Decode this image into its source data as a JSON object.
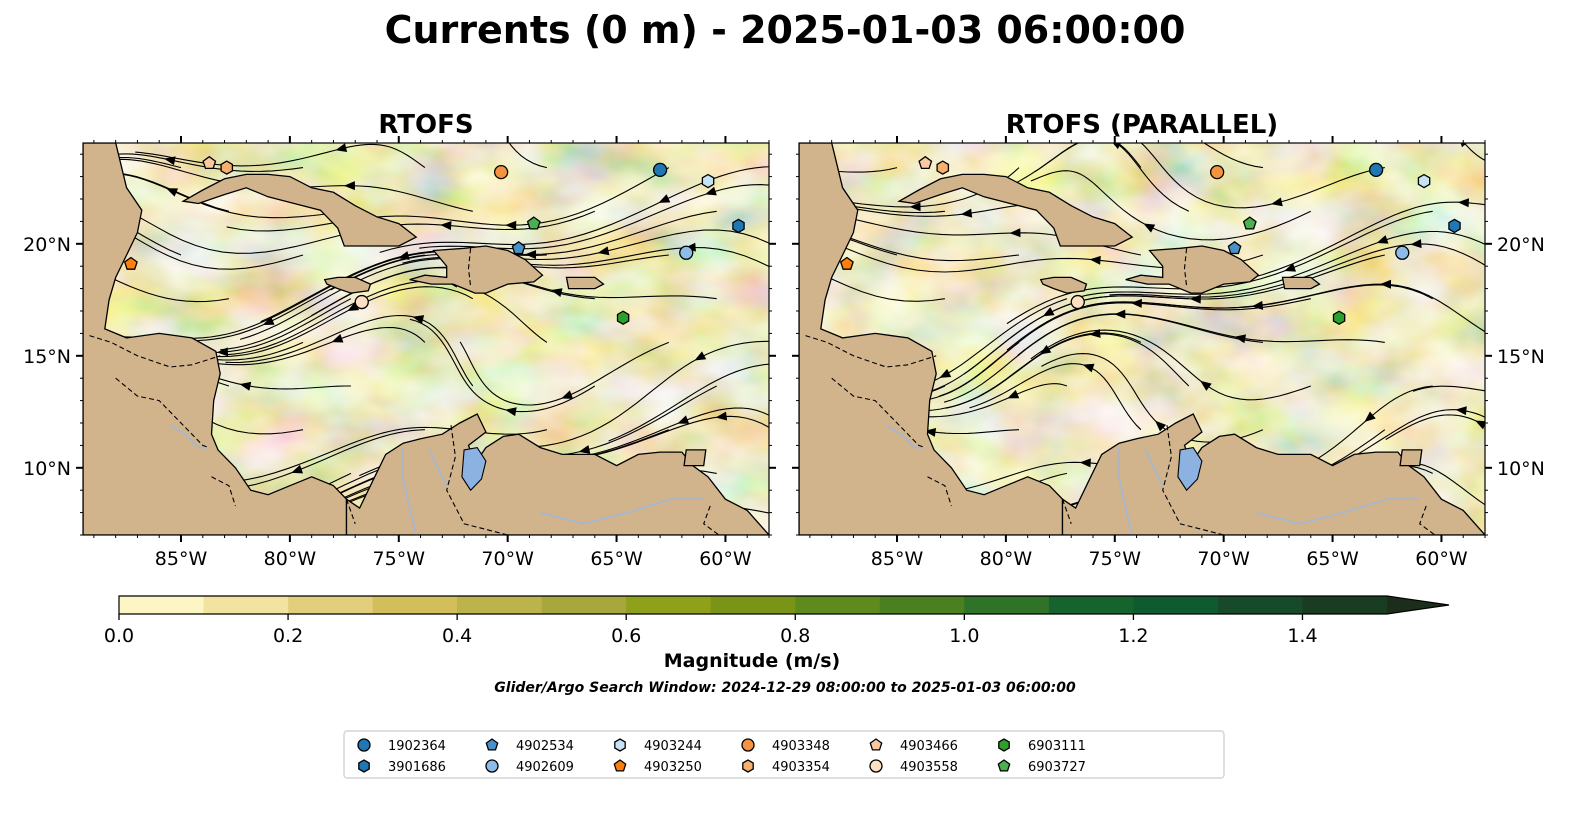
{
  "figure": {
    "title": "Currents (0 m) - 2025-01-03 06:00:00",
    "subtitle": "Glider/Argo Search Window: 2024-12-29 08:00:00 to 2025-01-03 06:00:00"
  },
  "panels": [
    {
      "id": "left",
      "title": "RTOFS"
    },
    {
      "id": "right",
      "title": "RTOFS (PARALLEL)"
    }
  ],
  "axes": {
    "lon_ticks": [
      "85°W",
      "80°W",
      "75°W",
      "70°W",
      "65°W",
      "60°W"
    ],
    "lat_ticks": [
      "20°N",
      "15°N",
      "10°N"
    ],
    "lon_range": [
      -89.5,
      -58.0
    ],
    "lat_range": [
      7.0,
      24.5
    ]
  },
  "colorbar": {
    "label": "Magnitude (m/s)",
    "ticks": [
      "0.0",
      "0.2",
      "0.4",
      "0.6",
      "0.8",
      "1.0",
      "1.2",
      "1.4"
    ],
    "range": [
      0.0,
      1.5
    ],
    "extend": "max",
    "colors": [
      "#fdf6c4",
      "#f2e3a0",
      "#e2ce7c",
      "#d2bf5c",
      "#bcb34a",
      "#a7a73c",
      "#8fa01a",
      "#7a9418",
      "#5f8a1c",
      "#4a8020",
      "#2f7328",
      "#16632e",
      "#105a30",
      "#164a2a",
      "#1a3c22",
      "#1c2e1b"
    ]
  },
  "colors": {
    "land": "#d2b48c",
    "lake": "#8bb2e0",
    "river": "#a0b8d8",
    "coast": "#000000",
    "streamline": "#000000"
  },
  "legend": {
    "items": [
      {
        "label": "1902364",
        "marker": "circle",
        "color": "#1f77b4"
      },
      {
        "label": "3901686",
        "marker": "hexagon",
        "color": "#1f77b4"
      },
      {
        "label": "4902534",
        "marker": "pentagon",
        "color": "#4a90c8"
      },
      {
        "label": "4902609",
        "marker": "circle",
        "color": "#8cbce8"
      },
      {
        "label": "4903244",
        "marker": "hexagon",
        "color": "#c6e2f5"
      },
      {
        "label": "4903250",
        "marker": "pentagon",
        "color": "#ff7f0e"
      },
      {
        "label": "4903348",
        "marker": "circle",
        "color": "#f59440"
      },
      {
        "label": "4903354",
        "marker": "hexagon",
        "color": "#f8ae6c"
      },
      {
        "label": "4903466",
        "marker": "pentagon",
        "color": "#fbc8a0"
      },
      {
        "label": "4903558",
        "marker": "circle",
        "color": "#fde0c4"
      },
      {
        "label": "6903111",
        "marker": "hexagon",
        "color": "#2ca02c"
      },
      {
        "label": "6903727",
        "marker": "pentagon",
        "color": "#4caf50"
      }
    ]
  },
  "map_data": {
    "floats": [
      {
        "id": "1902364",
        "lon": -63.0,
        "lat": 23.3
      },
      {
        "id": "3901686",
        "lon": -59.4,
        "lat": 20.8
      },
      {
        "id": "4902534",
        "lon": -69.5,
        "lat": 19.8
      },
      {
        "id": "4902609",
        "lon": -61.8,
        "lat": 19.6
      },
      {
        "id": "4903244",
        "lon": -60.8,
        "lat": 22.8
      },
      {
        "id": "4903250",
        "lon": -87.3,
        "lat": 19.1
      },
      {
        "id": "4903348",
        "lon": -70.3,
        "lat": 23.2
      },
      {
        "id": "4903354",
        "lon": -82.9,
        "lat": 23.4
      },
      {
        "id": "4903466",
        "lon": -83.7,
        "lat": 23.6
      },
      {
        "id": "4903558",
        "lon": -76.7,
        "lat": 17.4
      },
      {
        "id": "6903111",
        "lon": -64.7,
        "lat": 16.7
      },
      {
        "id": "6903727",
        "lon": -68.8,
        "lat": 20.9
      }
    ],
    "land": {
      "cuba": [
        [
          -84.9,
          21.9
        ],
        [
          -84.0,
          22.4
        ],
        [
          -83.0,
          22.9
        ],
        [
          -82.0,
          23.1
        ],
        [
          -81.0,
          23.1
        ],
        [
          -80.0,
          23.0
        ],
        [
          -79.0,
          22.5
        ],
        [
          -78.0,
          22.3
        ],
        [
          -77.0,
          21.7
        ],
        [
          -76.0,
          21.2
        ],
        [
          -75.0,
          20.9
        ],
        [
          -74.2,
          20.3
        ],
        [
          -75.0,
          19.9
        ],
        [
          -76.0,
          19.9
        ],
        [
          -77.5,
          19.9
        ],
        [
          -77.8,
          20.7
        ],
        [
          -78.6,
          21.5
        ],
        [
          -79.8,
          21.8
        ],
        [
          -81.0,
          22.1
        ],
        [
          -82.0,
          22.5
        ],
        [
          -83.0,
          22.2
        ],
        [
          -84.2,
          21.8
        ]
      ],
      "hispaniola": [
        [
          -74.5,
          18.4
        ],
        [
          -73.8,
          18.6
        ],
        [
          -72.8,
          18.5
        ],
        [
          -72.8,
          19.0
        ],
        [
          -73.4,
          19.7
        ],
        [
          -72.0,
          19.8
        ],
        [
          -71.0,
          19.9
        ],
        [
          -70.0,
          19.7
        ],
        [
          -69.2,
          19.3
        ],
        [
          -68.4,
          18.6
        ],
        [
          -68.8,
          18.3
        ],
        [
          -70.0,
          18.2
        ],
        [
          -71.0,
          17.8
        ],
        [
          -71.5,
          17.8
        ],
        [
          -72.5,
          18.2
        ],
        [
          -73.5,
          18.2
        ]
      ],
      "jamaica": [
        [
          -78.4,
          18.4
        ],
        [
          -77.8,
          18.5
        ],
        [
          -77.0,
          18.5
        ],
        [
          -76.3,
          18.2
        ],
        [
          -76.4,
          17.9
        ],
        [
          -77.2,
          17.8
        ],
        [
          -77.8,
          18.0
        ],
        [
          -78.3,
          18.2
        ]
      ],
      "puerto_rico": [
        [
          -67.3,
          18.5
        ],
        [
          -66.0,
          18.5
        ],
        [
          -65.6,
          18.2
        ],
        [
          -66.0,
          18.0
        ],
        [
          -67.2,
          18.0
        ]
      ],
      "central_america": [
        [
          -89.5,
          24.5
        ],
        [
          -88.0,
          24.5
        ],
        [
          -87.5,
          22.5
        ],
        [
          -86.8,
          21.5
        ],
        [
          -87.0,
          20.5
        ],
        [
          -87.5,
          19.5
        ],
        [
          -88.0,
          18.5
        ],
        [
          -88.3,
          17.5
        ],
        [
          -88.5,
          16.2
        ],
        [
          -87.5,
          15.8
        ],
        [
          -86.0,
          16.0
        ],
        [
          -84.5,
          15.8
        ],
        [
          -83.4,
          15.2
        ],
        [
          -83.2,
          14.2
        ],
        [
          -83.5,
          13.0
        ],
        [
          -83.6,
          11.5
        ],
        [
          -83.3,
          10.8
        ],
        [
          -82.5,
          10.0
        ],
        [
          -81.8,
          9.0
        ],
        [
          -81.0,
          8.8
        ],
        [
          -80.0,
          9.2
        ],
        [
          -79.0,
          9.6
        ],
        [
          -78.0,
          9.2
        ],
        [
          -77.4,
          8.6
        ],
        [
          -77.4,
          7.0
        ],
        [
          -89.5,
          7.0
        ]
      ],
      "south_america": [
        [
          -77.4,
          8.6
        ],
        [
          -76.8,
          8.2
        ],
        [
          -76.2,
          9.4
        ],
        [
          -75.6,
          10.6
        ],
        [
          -74.8,
          11.1
        ],
        [
          -74.0,
          11.3
        ],
        [
          -73.0,
          11.5
        ],
        [
          -72.2,
          12.0
        ],
        [
          -71.4,
          12.4
        ],
        [
          -71.0,
          11.6
        ],
        [
          -71.8,
          11.0
        ],
        [
          -71.5,
          10.2
        ],
        [
          -71.0,
          10.9
        ],
        [
          -70.2,
          11.4
        ],
        [
          -69.5,
          11.5
        ],
        [
          -68.5,
          10.9
        ],
        [
          -67.5,
          10.6
        ],
        [
          -66.0,
          10.6
        ],
        [
          -65.0,
          10.1
        ],
        [
          -64.0,
          10.6
        ],
        [
          -63.0,
          10.7
        ],
        [
          -62.0,
          10.7
        ],
        [
          -61.5,
          10.1
        ],
        [
          -60.8,
          9.6
        ],
        [
          -60.0,
          8.6
        ],
        [
          -59.0,
          8.1
        ],
        [
          -58.0,
          7.0
        ],
        [
          -77.4,
          7.0
        ]
      ],
      "trinidad": [
        [
          -61.9,
          10.1
        ],
        [
          -61.0,
          10.1
        ],
        [
          -60.9,
          10.8
        ],
        [
          -61.8,
          10.8
        ]
      ]
    },
    "lake": [
      [
        -72.0,
        10.8
      ],
      [
        -71.4,
        10.9
      ],
      [
        -71.0,
        10.3
      ],
      [
        -71.2,
        9.5
      ],
      [
        -71.7,
        9.0
      ],
      [
        -72.1,
        9.6
      ]
    ],
    "borders": [
      [
        [
          -89.2,
          15.9
        ],
        [
          -88.2,
          15.6
        ],
        [
          -87.0,
          15.0
        ],
        [
          -85.5,
          14.5
        ],
        [
          -84.5,
          14.6
        ],
        [
          -83.2,
          15.0
        ]
      ],
      [
        [
          -88.0,
          14.0
        ],
        [
          -87.0,
          13.2
        ],
        [
          -86.0,
          13.0
        ],
        [
          -85.0,
          12.0
        ],
        [
          -84.0,
          11.0
        ],
        [
          -83.7,
          10.9
        ]
      ],
      [
        [
          -83.6,
          9.6
        ],
        [
          -82.8,
          9.2
        ],
        [
          -82.5,
          8.3
        ]
      ],
      [
        [
          -77.4,
          8.6
        ],
        [
          -77.0,
          7.5
        ]
      ],
      [
        [
          -72.6,
          11.9
        ],
        [
          -72.4,
          10.5
        ],
        [
          -72.8,
          9.0
        ],
        [
          -72.0,
          7.5
        ],
        [
          -70.0,
          7.0
        ]
      ],
      [
        [
          -60.7,
          8.3
        ],
        [
          -61.0,
          7.5
        ],
        [
          -60.3,
          7.0
        ]
      ],
      [
        [
          -71.7,
          19.8
        ],
        [
          -71.8,
          18.9
        ],
        [
          -71.7,
          18.1
        ]
      ]
    ],
    "rivers": [
      [
        [
          -85.5,
          11.9
        ],
        [
          -84.8,
          11.5
        ],
        [
          -84.2,
          10.9
        ],
        [
          -83.8,
          10.9
        ]
      ],
      [
        [
          -74.8,
          10.9
        ],
        [
          -74.8,
          9.5
        ],
        [
          -74.5,
          8.2
        ],
        [
          -74.2,
          7.0
        ]
      ],
      [
        [
          -68.5,
          8.0
        ],
        [
          -66.5,
          7.5
        ],
        [
          -64.5,
          8.0
        ],
        [
          -62.5,
          8.6
        ],
        [
          -61.0,
          8.6
        ]
      ],
      [
        [
          -73.6,
          10.8
        ],
        [
          -72.8,
          9.2
        ]
      ]
    ]
  }
}
